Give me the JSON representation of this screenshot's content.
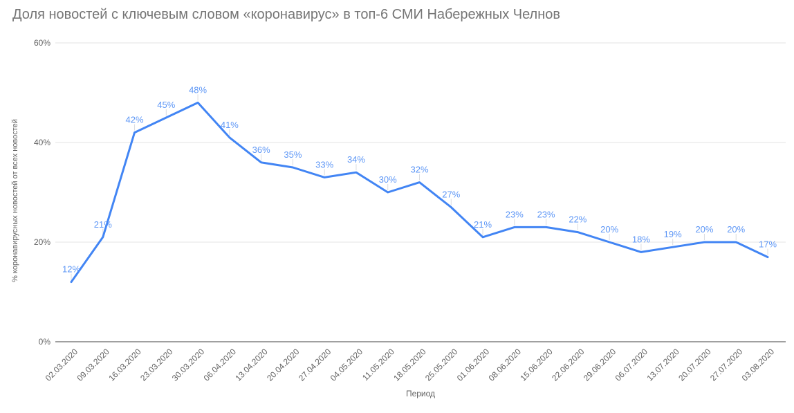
{
  "title": "Доля новостей с ключевым словом «коронавирус» в топ-6 СМИ Набережных Челнов",
  "chart_data": {
    "type": "line",
    "title": "Доля новостей с ключевым словом «коронавирус» в топ-6 СМИ Набережных Челнов",
    "x": [
      "02.03.2020",
      "09.03.2020",
      "16.03.2020",
      "23.03.2020",
      "30.03.2020",
      "06.04.2020",
      "13.04.2020",
      "20.04.2020",
      "27.04.2020",
      "04.05.2020",
      "11.05.2020",
      "18.05.2020",
      "25.05.2020",
      "01.06.2020",
      "08.06.2020",
      "15.06.2020",
      "22.06.2020",
      "29.06.2020",
      "06.07.2020",
      "13.07.2020",
      "20.07.2020",
      "27.07.2020",
      "03.08.2020"
    ],
    "values": [
      12,
      21,
      42,
      45,
      48,
      41,
      36,
      35,
      33,
      34,
      30,
      32,
      27,
      21,
      23,
      23,
      22,
      20,
      18,
      19,
      20,
      20,
      17
    ],
    "data_labels": [
      "12%",
      "21%",
      "42%",
      "45%",
      "48%",
      "41%",
      "36%",
      "35%",
      "33%",
      "34%",
      "30%",
      "32%",
      "27%",
      "21%",
      "23%",
      "23%",
      "22%",
      "20%",
      "18%",
      "19%",
      "20%",
      "20%",
      "17%"
    ],
    "xlabel": "Период",
    "ylabel": "% коронавирусных новостей от всех новостей",
    "ylim": [
      0,
      60
    ],
    "yticks": [
      0,
      20,
      40,
      60
    ],
    "ytick_labels": [
      "0%",
      "20%",
      "40%",
      "60%"
    ],
    "grid": true,
    "legend": "none"
  },
  "colors": {
    "line": "#4285f4",
    "data_label": "#5e97f6",
    "gridline": "#e3e3e3",
    "axis_line": "#424242",
    "tick_label": "#616161",
    "leader_tick": "#dadce0",
    "title": "#757575",
    "background": "#ffffff"
  }
}
